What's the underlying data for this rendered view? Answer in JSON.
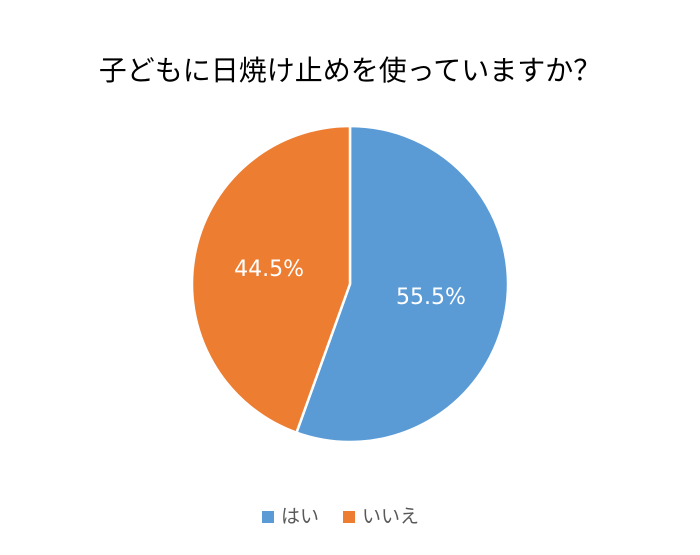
{
  "chart_data": {
    "type": "pie",
    "title": "子どもに日焼け止めを使っていますか？",
    "categories": [
      "はい",
      "いいえ"
    ],
    "values": [
      55.5,
      44.5
    ],
    "value_labels": [
      "55.5%",
      "44.5%"
    ],
    "colors": [
      "#5b9bd5",
      "#ed7d31"
    ],
    "legend": "bottom"
  }
}
